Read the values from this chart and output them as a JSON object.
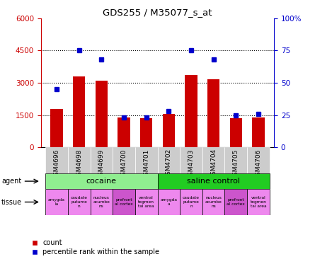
{
  "title": "GDS255 / M35077_s_at",
  "samples": [
    "GSM4696",
    "GSM4698",
    "GSM4699",
    "GSM4700",
    "GSM4701",
    "GSM4702",
    "GSM4703",
    "GSM4704",
    "GSM4705",
    "GSM4706"
  ],
  "counts": [
    1800,
    3300,
    3100,
    1400,
    1350,
    1550,
    3350,
    3150,
    1350,
    1400
  ],
  "percentiles": [
    45,
    75,
    68,
    23,
    23,
    28,
    75,
    68,
    25,
    26
  ],
  "bar_color": "#cc0000",
  "dot_color": "#0000cc",
  "ylim_left": [
    0,
    6000
  ],
  "ylim_right": [
    0,
    100
  ],
  "yticks_left": [
    0,
    1500,
    3000,
    4500,
    6000
  ],
  "yticks_right": [
    0,
    25,
    50,
    75,
    100
  ],
  "ytick_labels_left": [
    "0",
    "1500",
    "3000",
    "4500",
    "6000"
  ],
  "ytick_labels_right": [
    "0",
    "25",
    "50",
    "75",
    "100%"
  ],
  "agent_groups": [
    {
      "label": "cocaine",
      "start": 0,
      "end": 5,
      "color": "#90ee90"
    },
    {
      "label": "saline control",
      "start": 5,
      "end": 10,
      "color": "#22cc22"
    }
  ],
  "tissue_labels": [
    "amygda\nla",
    "caudate\nputame\nn",
    "nucleus\nacumbe\nns",
    "prefront\nal cortex",
    "ventral\ntegmen\ntal area",
    "amygda\na",
    "caudate\nputame\nn",
    "nucleus\nacumbe\nns",
    "prefront\nal cortex",
    "ventral\ntegmen\ntal area"
  ],
  "tissue_colors": [
    "#ee88ee",
    "#ee88ee",
    "#ee88ee",
    "#cc55cc",
    "#ee88ee",
    "#ee88ee",
    "#ee88ee",
    "#ee88ee",
    "#cc55cc",
    "#ee88ee"
  ],
  "sample_bg_color": "#cccccc",
  "agent_label": "agent",
  "tissue_label": "tissue",
  "legend_count_label": "count",
  "legend_pct_label": "percentile rank within the sample",
  "tick_label_color_left": "#cc0000",
  "tick_label_color_right": "#0000cc",
  "bar_width": 0.55
}
